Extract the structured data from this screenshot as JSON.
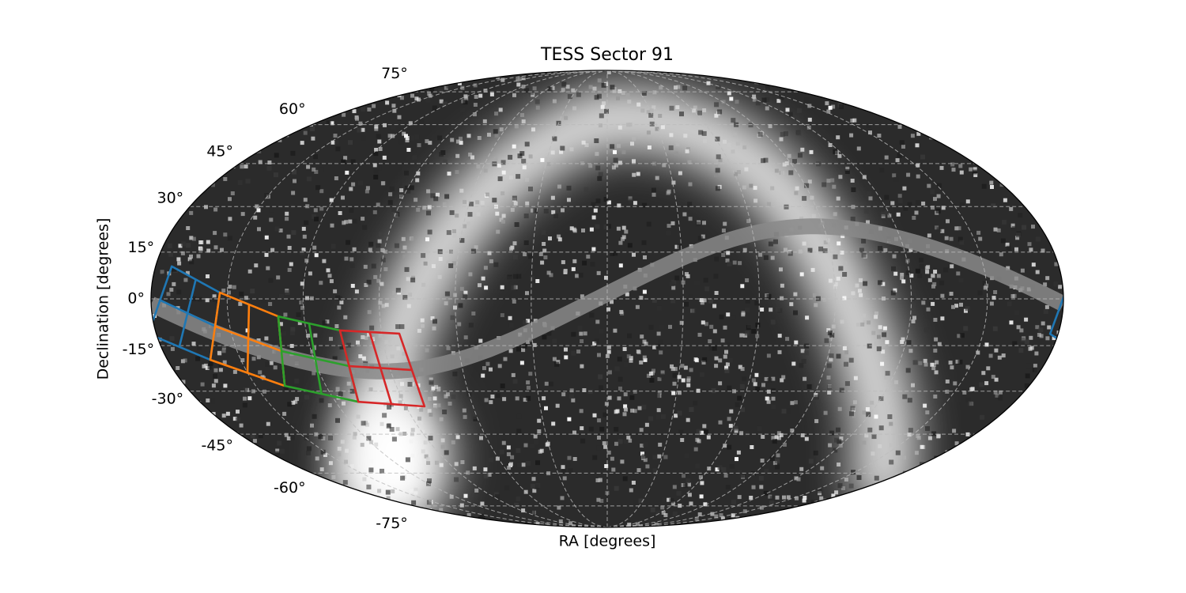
{
  "chart_data": {
    "type": "mollweide",
    "title": "TESS Sector 91",
    "xlabel": "RA [degrees]",
    "ylabel": "Declination [degrees]",
    "xlim": [
      -180,
      180
    ],
    "ylim": [
      -90,
      90
    ],
    "xticks": [
      -150,
      -120,
      -90,
      -60,
      -30,
      0,
      30,
      60,
      90,
      120,
      150
    ],
    "yticks": [
      {
        "value": -75,
        "label": "-75°"
      },
      {
        "value": -60,
        "label": "-60°"
      },
      {
        "value": -45,
        "label": "-45°"
      },
      {
        "value": -30,
        "label": "-30°"
      },
      {
        "value": -15,
        "label": "-15°"
      },
      {
        "value": 0,
        "label": "0°"
      },
      {
        "value": 15,
        "label": "15°"
      },
      {
        "value": 30,
        "label": "30°"
      },
      {
        "value": 45,
        "label": "45°"
      },
      {
        "value": 60,
        "label": "60°"
      },
      {
        "value": 75,
        "label": "75°"
      }
    ],
    "grid": true,
    "footprints": [
      {
        "color": "#1f77b4",
        "x": [
          -173.6,
          -152.9,
          -162.5,
          -183.2
        ],
        "y": [
          10.4,
          2.0,
          -19.6,
          -11.2
        ]
      },
      {
        "color": "#ff7f0e",
        "x": [
          -152.9,
          -130.2,
          -137.6,
          -162.5
        ],
        "y": [
          2.0,
          -5.6,
          -28.2,
          -19.6
        ]
      },
      {
        "color": "#2ca02c",
        "x": [
          -130.2,
          -106.5,
          -110.0,
          -137.6
        ],
        "y": [
          -5.6,
          -10.1,
          -33.6,
          -28.2
        ]
      },
      {
        "color": "#d62728",
        "x": [
          -106.5,
          -83.0,
          -81.7,
          -110.0
        ],
        "y": [
          -10.1,
          -11.1,
          -35.2,
          -33.6
        ]
      }
    ]
  }
}
